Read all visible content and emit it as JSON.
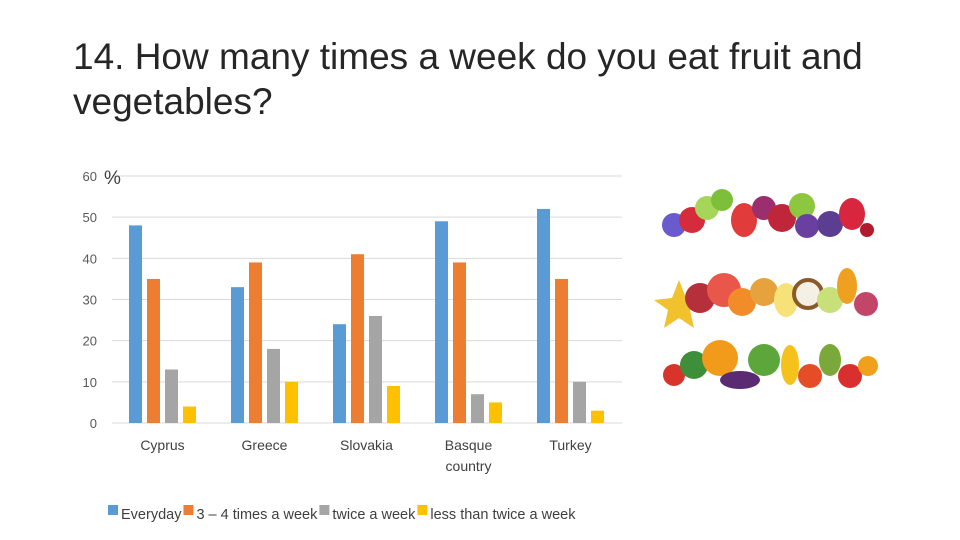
{
  "slide": {
    "title": "14. How many times a week do you eat fruit and vegetables?"
  },
  "chart_data": {
    "type": "bar",
    "unit_label": "%",
    "categories": [
      [
        "Cyprus"
      ],
      [
        "Greece"
      ],
      [
        "Slovakia"
      ],
      [
        "Basque",
        "country"
      ],
      [
        "Turkey"
      ]
    ],
    "series": [
      {
        "name": "Everyday",
        "color": "#5B9BD5",
        "values": [
          48,
          33,
          24,
          49,
          52
        ]
      },
      {
        "name": "3 – 4 times a week",
        "color": "#ED7D31",
        "values": [
          35,
          39,
          41,
          39,
          35
        ]
      },
      {
        "name": "twice a week",
        "color": "#A5A5A5",
        "values": [
          13,
          18,
          26,
          7,
          10
        ]
      },
      {
        "name": "less than twice a week",
        "color": "#FFC000",
        "values": [
          4,
          10,
          9,
          5,
          3
        ]
      }
    ],
    "ylim": [
      0,
      60
    ],
    "yticks": [
      0,
      10,
      20,
      30,
      40,
      50,
      60
    ],
    "grid": true,
    "legend_position": "bottom"
  },
  "decoration": {
    "image": "fruit-and-vegetables-illustration"
  }
}
